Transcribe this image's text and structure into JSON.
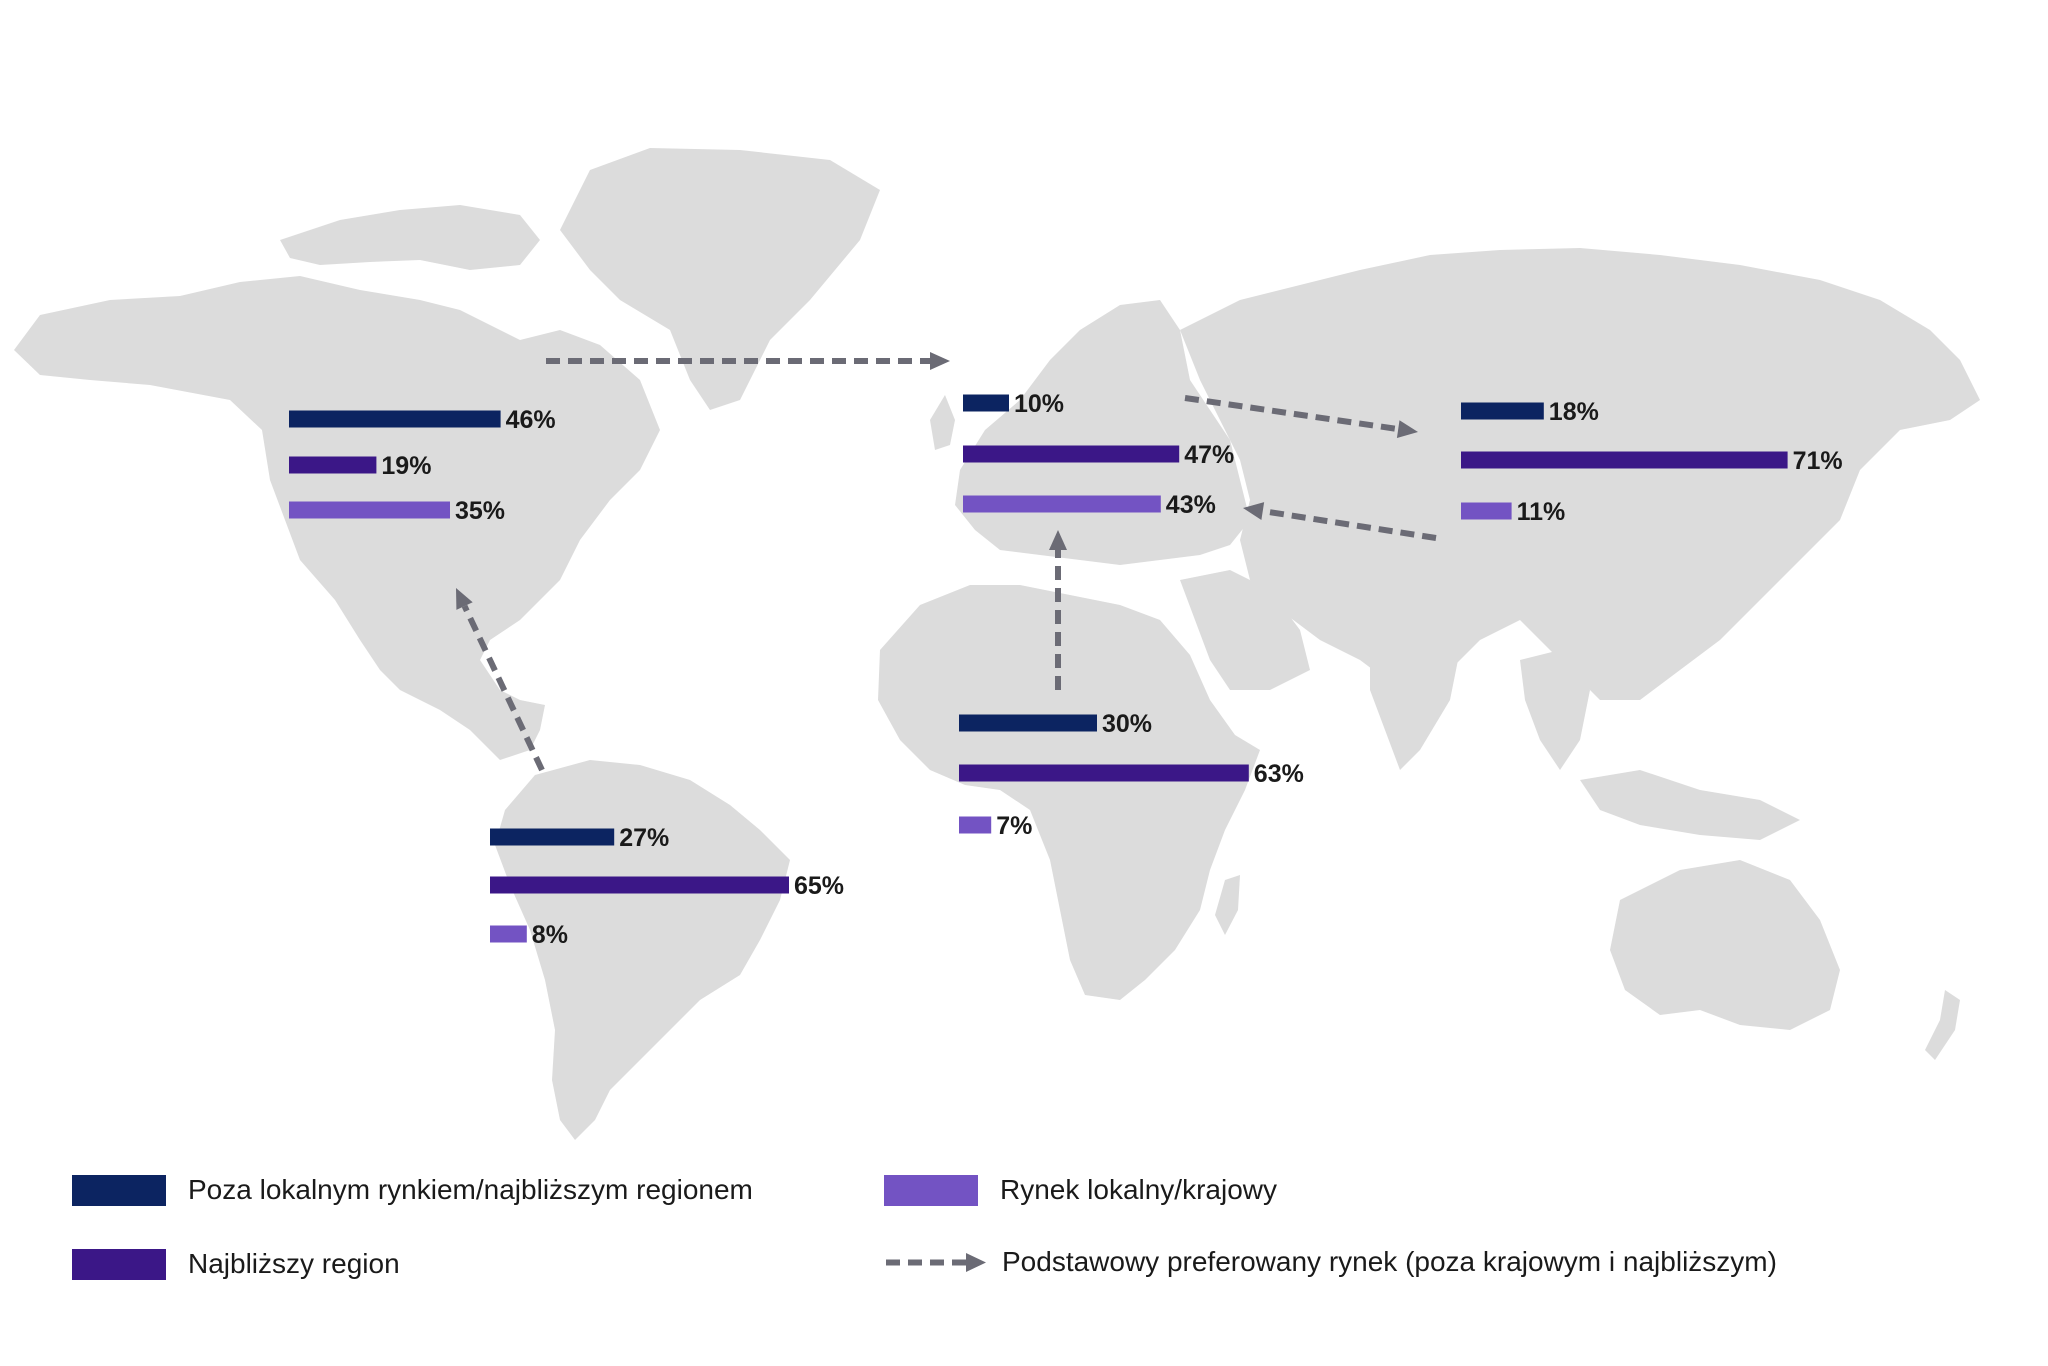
{
  "colors": {
    "land": "#dcdcdc",
    "outside": "#0c2461",
    "nearest": "#3b1787",
    "local": "#7353c3",
    "arrow": "#6b6b75",
    "label": "#1a1a1a"
  },
  "chart_data": {
    "type": "bar",
    "categories": [
      "Poza lokalnym rynkiem/najbliższym regionem",
      "Najbliższy region",
      "Rynek lokalny/krajowy"
    ],
    "regions": [
      {
        "id": "north-america",
        "values": [
          46,
          19,
          35
        ],
        "labels": [
          "46%",
          "19%",
          "35%"
        ]
      },
      {
        "id": "south-america",
        "values": [
          27,
          65,
          8
        ],
        "labels": [
          "27%",
          "65%",
          "8%"
        ]
      },
      {
        "id": "europe",
        "values": [
          10,
          47,
          43
        ],
        "labels": [
          "10%",
          "47%",
          "43%"
        ]
      },
      {
        "id": "africa",
        "values": [
          30,
          63,
          7
        ],
        "labels": [
          "30%",
          "63%",
          "7%"
        ]
      },
      {
        "id": "asia",
        "values": [
          18,
          71,
          11
        ],
        "labels": [
          "18%",
          "71%",
          "11%"
        ]
      }
    ],
    "arrows": [
      {
        "from": "north-america",
        "to": "europe"
      },
      {
        "from": "south-america",
        "to": "north-america"
      },
      {
        "from": "europe",
        "to": "asia"
      },
      {
        "from": "asia",
        "to": "europe"
      },
      {
        "from": "africa",
        "to": "europe"
      }
    ]
  },
  "legend": {
    "outside_label": "Poza lokalnym rynkiem/najbliższym regionem",
    "nearest_label": "Najbliższy region",
    "local_label": "Rynek lokalny/krajowy",
    "arrow_label": "Podstawowy preferowany rynek (poza krajowym i najbliższym)"
  }
}
